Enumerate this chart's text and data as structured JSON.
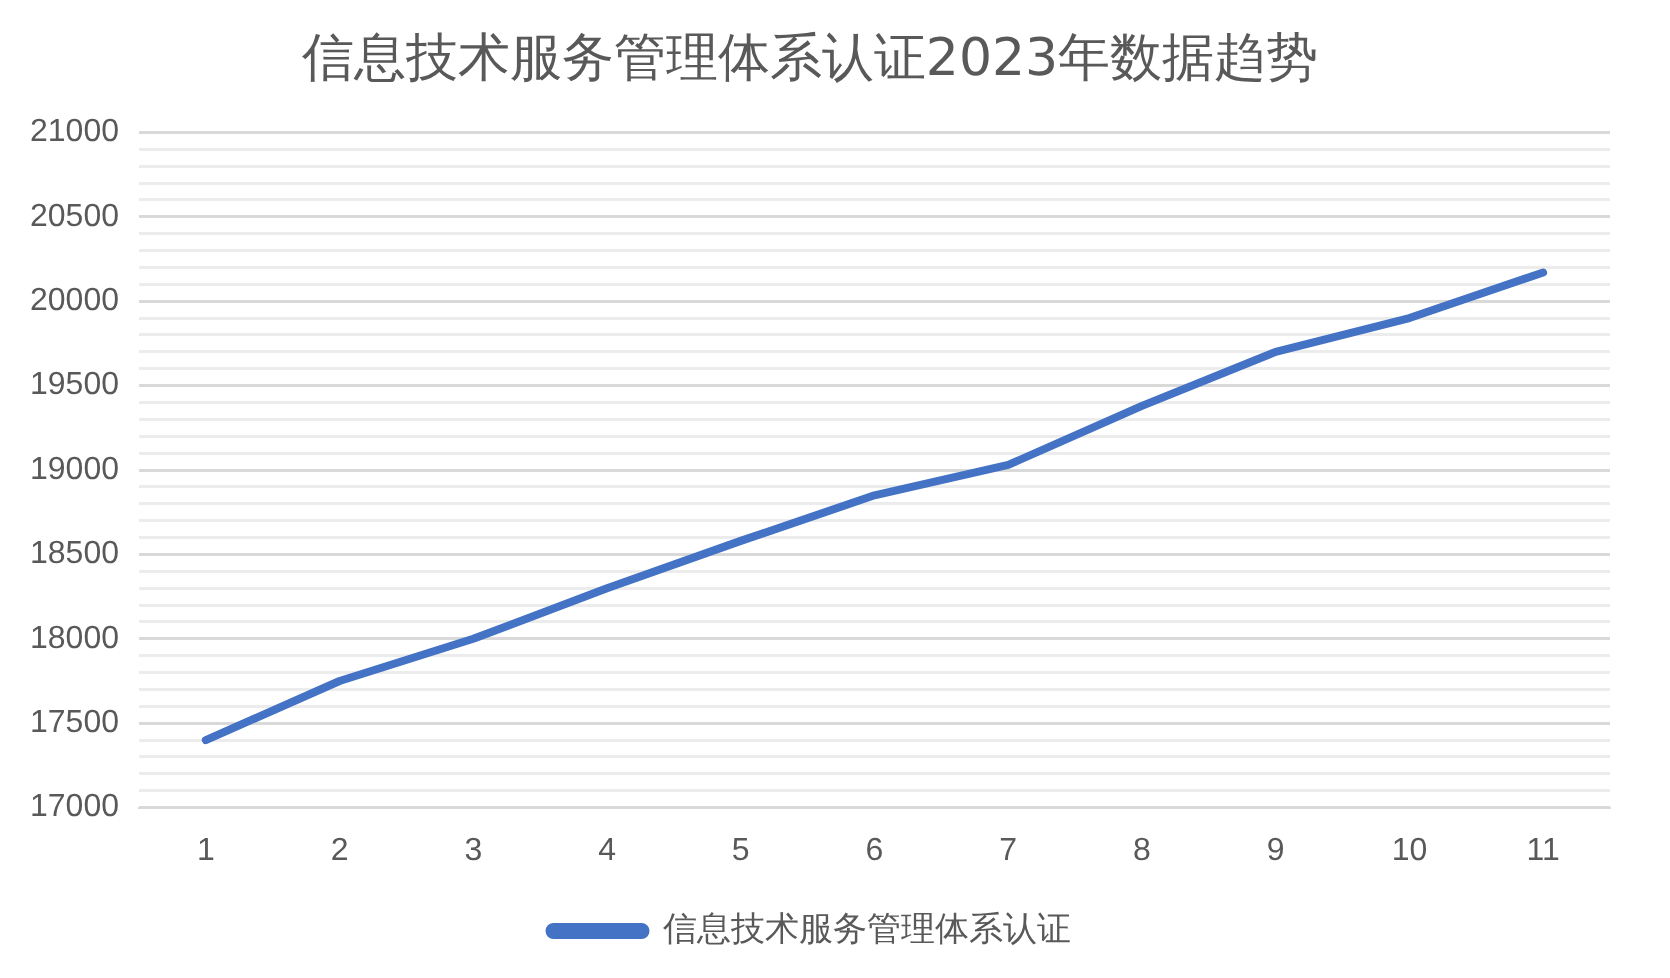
{
  "chart_data": {
    "type": "line",
    "title": "信息技术服务管理体系认证2023年数据趋势",
    "categories": [
      "1",
      "2",
      "3",
      "4",
      "5",
      "6",
      "7",
      "8",
      "9",
      "10",
      "11"
    ],
    "series": [
      {
        "name": "信息技术服务管理体系认证",
        "color": "#4472c4",
        "values": [
          17400,
          17750,
          18000,
          18300,
          18580,
          18850,
          19030,
          19380,
          19700,
          19900,
          20170
        ]
      }
    ],
    "ylim": [
      17000,
      21000
    ],
    "yticks": [
      17000,
      {
        "value": 17100,
        "label": null
      },
      {
        "value": 17200,
        "label": null
      },
      {
        "value": 17300,
        "label": null
      },
      {
        "value": 17400,
        "label": null
      },
      17500,
      {
        "value": 17600,
        "label": null
      },
      {
        "value": 17700,
        "label": null
      },
      {
        "value": 17800,
        "label": null
      },
      {
        "value": 17900,
        "label": null
      },
      18000,
      {
        "value": 18100,
        "label": null
      },
      {
        "value": 18200,
        "label": null
      },
      {
        "value": 18300,
        "label": null
      },
      {
        "value": 18400,
        "label": null
      },
      18500,
      {
        "value": 18600,
        "label": null
      },
      {
        "value": 18700,
        "label": null
      },
      {
        "value": 18800,
        "label": null
      },
      {
        "value": 18900,
        "label": null
      },
      19000,
      {
        "value": 19100,
        "label": null
      },
      {
        "value": 19200,
        "label": null
      },
      {
        "value": 19300,
        "label": null
      },
      {
        "value": 19400,
        "label": null
      },
      19500,
      {
        "value": 19600,
        "label": null
      },
      {
        "value": 19700,
        "label": null
      },
      {
        "value": 19800,
        "label": null
      },
      {
        "value": 19900,
        "label": null
      },
      20000,
      {
        "value": 20100,
        "label": null
      },
      {
        "value": 20200,
        "label": null
      },
      {
        "value": 20300,
        "label": null
      },
      {
        "value": 20400,
        "label": null
      },
      20500,
      {
        "value": 20600,
        "label": null
      },
      {
        "value": 20700,
        "label": null
      },
      {
        "value": 20800,
        "label": null
      },
      {
        "value": 20900,
        "label": null
      },
      21000
    ],
    "grid": "y",
    "legend": "bottom",
    "marker": "none",
    "line_style": "solid"
  }
}
